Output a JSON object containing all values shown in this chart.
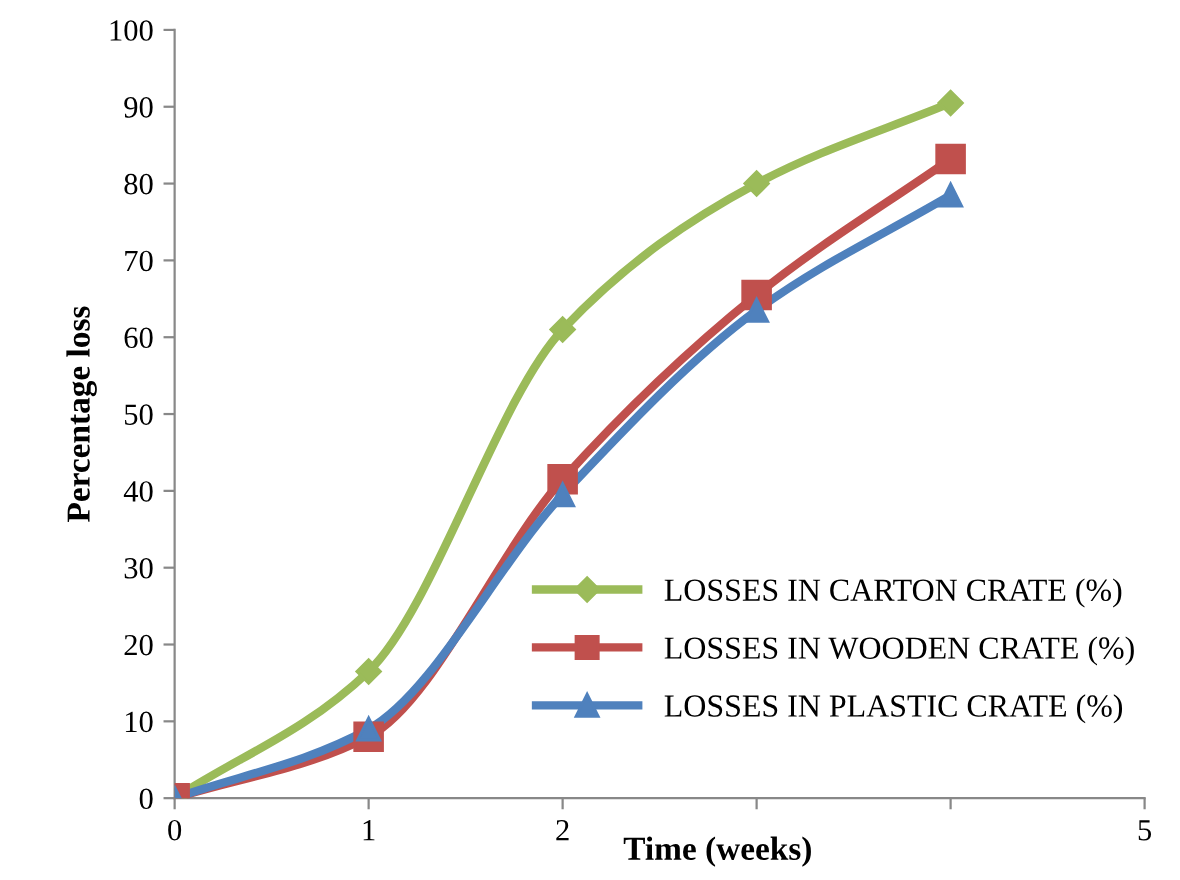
{
  "chart_data": {
    "type": "line",
    "xlabel": "Time (weeks)",
    "ylabel": "Percentage loss",
    "xlim": [
      0,
      5
    ],
    "xticks": [
      0,
      1,
      2,
      {
        "value": 3,
        "label": null
      },
      {
        "value": 4,
        "label": null
      },
      5
    ],
    "ylim": [
      0,
      100
    ],
    "yticks": [
      0,
      10,
      20,
      30,
      40,
      50,
      60,
      70,
      80,
      90,
      100
    ],
    "grid": false,
    "legend": "bottom right",
    "line_style": "solid",
    "x": [
      0,
      1,
      2,
      3,
      4
    ],
    "series": [
      {
        "name": "LOSSES IN CARTON CRATE (%)",
        "color": "#9bbb59",
        "marker": "diamond",
        "values": [
          0,
          16.5,
          61,
          80,
          90.5
        ]
      },
      {
        "name": "LOSSES IN WOODEN CRATE (%)",
        "color": "#c0504d",
        "marker": "square",
        "values": [
          0,
          8,
          41.5,
          65.5,
          83.2
        ]
      },
      {
        "name": "LOSSES IN PLASTIC CRATE (%)",
        "color": "#4f81bd",
        "marker": "triangle",
        "values": [
          0,
          9,
          39.5,
          63.5,
          78.5
        ]
      }
    ]
  }
}
